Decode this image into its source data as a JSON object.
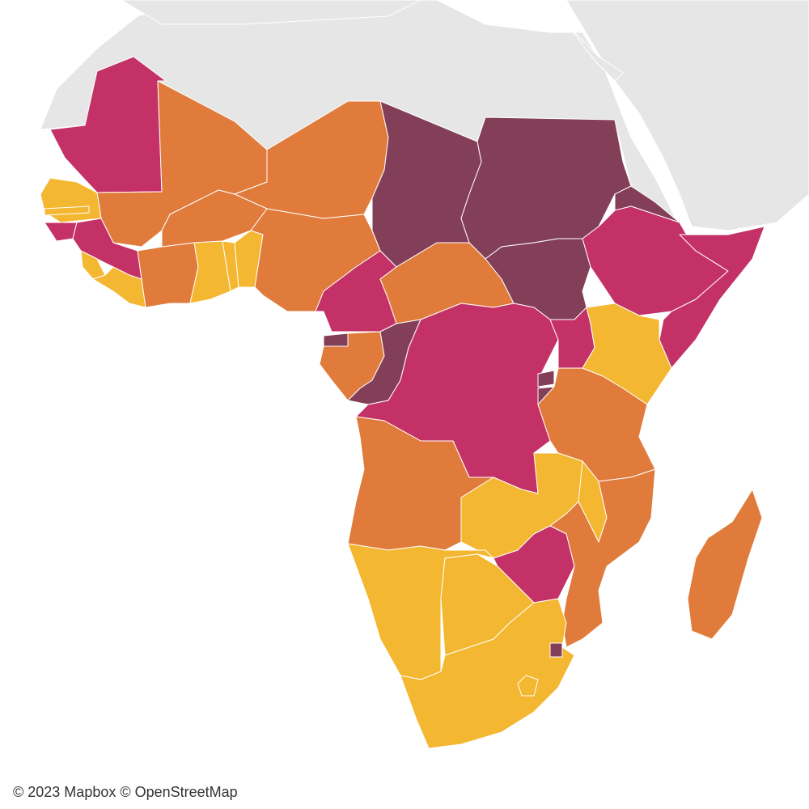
{
  "map": {
    "attribution": "© 2023 Mapbox © OpenStreetMap",
    "palette": {
      "ocean": "#ffffff",
      "background_land": "#e6e6e6",
      "border": "#ffffff",
      "class_1": "#f4b731",
      "class_2": "#e07b3c",
      "class_3": "#c43166",
      "class_4": "#843f58"
    },
    "regions": [
      {
        "name": "Mauritania",
        "class": "class_3"
      },
      {
        "name": "Mali",
        "class": "class_2"
      },
      {
        "name": "Niger",
        "class": "class_2"
      },
      {
        "name": "Chad",
        "class": "class_4"
      },
      {
        "name": "Sudan",
        "class": "class_4"
      },
      {
        "name": "Senegal",
        "class": "class_1"
      },
      {
        "name": "Gambia",
        "class": "class_1"
      },
      {
        "name": "Guinea-Bissau",
        "class": "class_3"
      },
      {
        "name": "Guinea",
        "class": "class_3"
      },
      {
        "name": "Sierra Leone",
        "class": "class_1"
      },
      {
        "name": "Liberia",
        "class": "class_1"
      },
      {
        "name": "Ivory Coast",
        "class": "class_2"
      },
      {
        "name": "Burkina Faso",
        "class": "class_2"
      },
      {
        "name": "Ghana",
        "class": "class_1"
      },
      {
        "name": "Togo",
        "class": "class_1"
      },
      {
        "name": "Benin",
        "class": "class_1"
      },
      {
        "name": "Nigeria",
        "class": "class_2"
      },
      {
        "name": "Cameroon",
        "class": "class_3"
      },
      {
        "name": "Central African Republic",
        "class": "class_2"
      },
      {
        "name": "South Sudan",
        "class": "class_4"
      },
      {
        "name": "Eritrea",
        "class": "class_4"
      },
      {
        "name": "Ethiopia",
        "class": "class_3"
      },
      {
        "name": "Somalia",
        "class": "class_3"
      },
      {
        "name": "Equatorial Guinea",
        "class": "class_4"
      },
      {
        "name": "Gabon",
        "class": "class_2"
      },
      {
        "name": "Republic of the Congo",
        "class": "class_4"
      },
      {
        "name": "DR Congo",
        "class": "class_3"
      },
      {
        "name": "Uganda",
        "class": "class_3"
      },
      {
        "name": "Kenya",
        "class": "class_1"
      },
      {
        "name": "Rwanda",
        "class": "class_4"
      },
      {
        "name": "Burundi",
        "class": "class_4"
      },
      {
        "name": "Tanzania",
        "class": "class_2"
      },
      {
        "name": "Angola",
        "class": "class_2"
      },
      {
        "name": "Zambia",
        "class": "class_1"
      },
      {
        "name": "Malawi",
        "class": "class_1"
      },
      {
        "name": "Mozambique",
        "class": "class_2"
      },
      {
        "name": "Zimbabwe",
        "class": "class_3"
      },
      {
        "name": "Namibia",
        "class": "class_1"
      },
      {
        "name": "Botswana",
        "class": "class_1"
      },
      {
        "name": "South Africa",
        "class": "class_1"
      },
      {
        "name": "Lesotho",
        "class": "class_1"
      },
      {
        "name": "Eswatini",
        "class": "class_4"
      },
      {
        "name": "Madagascar",
        "class": "class_2"
      }
    ]
  }
}
